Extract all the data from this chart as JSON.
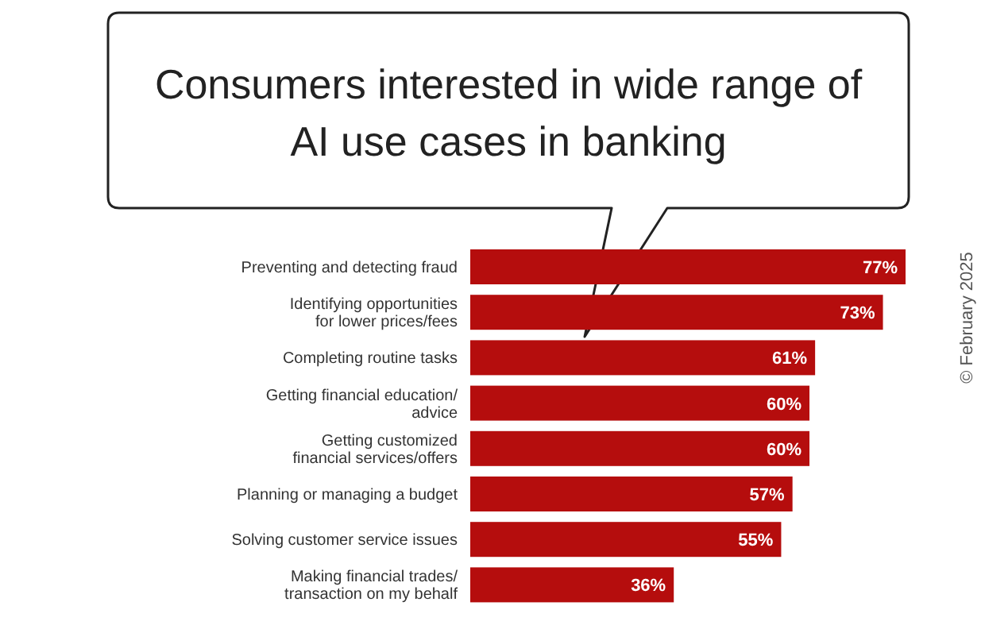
{
  "chart_data": {
    "type": "bar",
    "orientation": "horizontal",
    "title": "Consumers interested in wide range of AI use cases in banking",
    "categories": [
      "Preventing and detecting fraud",
      "Identifying opportunities\nfor lower prices/fees",
      "Completing routine tasks",
      "Getting financial education/\nadvice",
      "Getting customized\nfinancial services/offers",
      "Planning or managing a budget",
      "Solving customer service issues",
      "Making financial trades/\ntransaction on my behalf"
    ],
    "values": [
      77,
      73,
      61,
      60,
      60,
      57,
      55,
      36
    ],
    "value_labels": [
      "77%",
      "73%",
      "61%",
      "60%",
      "60%",
      "57%",
      "55%",
      "36%"
    ],
    "color": "#b50d0d",
    "annotations": [
      "© February 2025"
    ]
  }
}
